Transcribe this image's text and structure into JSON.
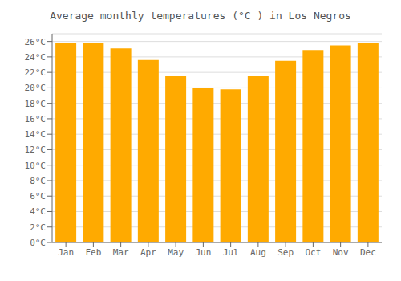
{
  "chart_data": {
    "type": "bar",
    "title": "Average monthly temperatures (°C ) in Los Negros",
    "categories": [
      "Jan",
      "Feb",
      "Mar",
      "Apr",
      "May",
      "Jun",
      "Jul",
      "Aug",
      "Sep",
      "Oct",
      "Nov",
      "Dec"
    ],
    "values": [
      25.8,
      25.8,
      25.1,
      23.6,
      21.5,
      20.0,
      19.8,
      21.5,
      23.5,
      24.9,
      25.5,
      25.8
    ],
    "color": "#FFAA00",
    "ylim": [
      0,
      27
    ],
    "yticks": [
      {
        "value": 0,
        "label": "0°C"
      },
      {
        "value": 2,
        "label": "2°C"
      },
      {
        "value": 4,
        "label": "4°C"
      },
      {
        "value": 6,
        "label": "6°C"
      },
      {
        "value": 8,
        "label": "8°C"
      },
      {
        "value": 10,
        "label": "10°C"
      },
      {
        "value": 12,
        "label": "12°C"
      },
      {
        "value": 14,
        "label": "14°C"
      },
      {
        "value": 16,
        "label": "16°C"
      },
      {
        "value": 18,
        "label": "18°C"
      },
      {
        "value": 20,
        "label": "20°C"
      },
      {
        "value": 22,
        "label": "22°C"
      },
      {
        "value": 24,
        "label": "24°C"
      },
      {
        "value": 26,
        "label": "26°C"
      }
    ],
    "grid": true
  }
}
